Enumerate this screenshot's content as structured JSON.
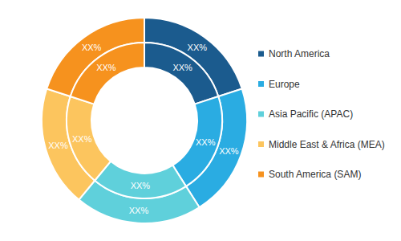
{
  "chart_data": {
    "type": "pie",
    "categories": [
      "North America",
      "Europe",
      "Asia Pacific (APAC)",
      "Middle East & Africa (MEA)",
      "South America (SAM)"
    ],
    "colors": [
      "#1b5b8e",
      "#2aace2",
      "#5fd0db",
      "#fcc55e",
      "#f6921e"
    ],
    "series": [
      {
        "values": [
          20,
          21,
          20,
          19,
          20
        ],
        "value_labels": [
          "XX%",
          "XX%",
          "XX%",
          "XX%",
          "XX%"
        ]
      },
      {
        "values": [
          20,
          21,
          20,
          19,
          20
        ],
        "value_labels": [
          "XX%",
          "XX%",
          "XX%",
          "XX%",
          "XX%"
        ]
      }
    ],
    "data_labels": true,
    "legend": "right"
  }
}
